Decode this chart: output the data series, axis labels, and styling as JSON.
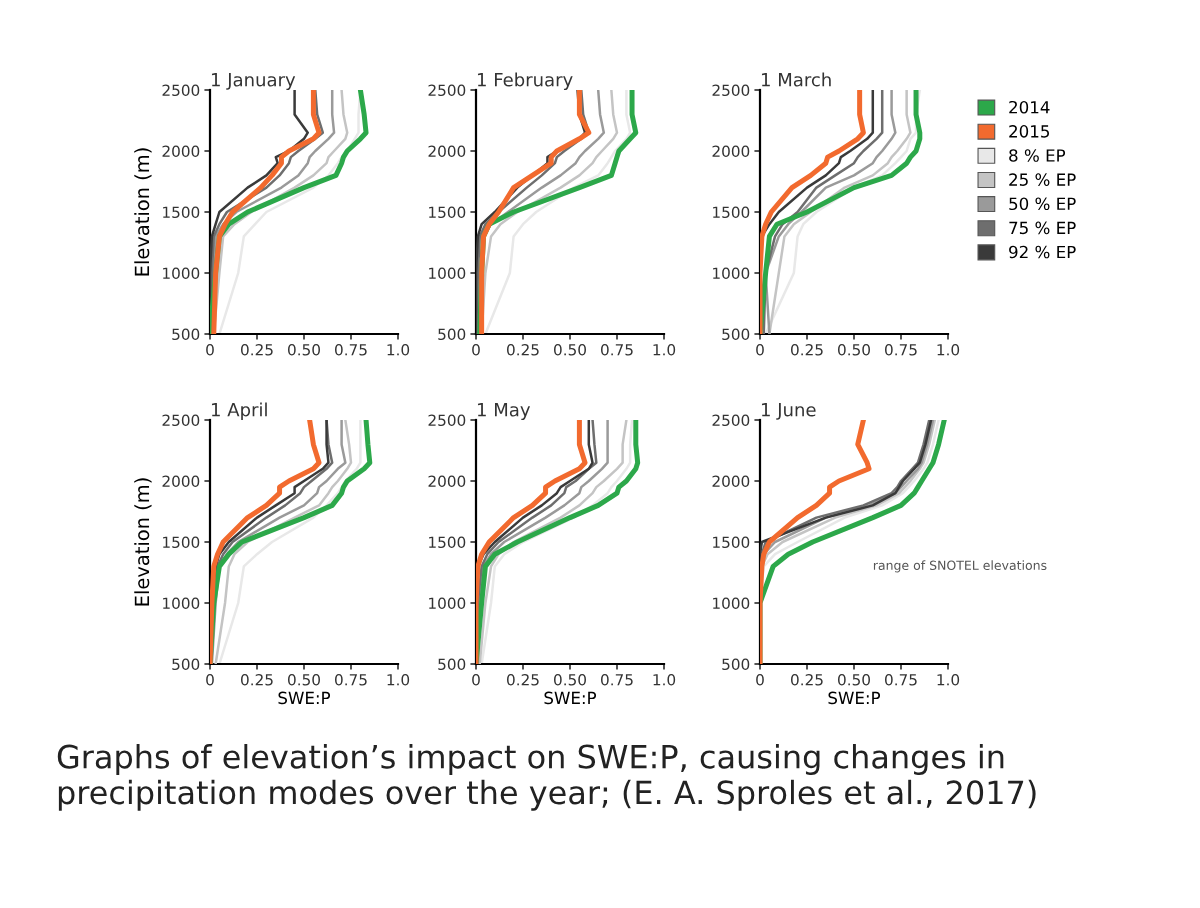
{
  "chart_data": [
    {
      "type": "line",
      "title": "1 January",
      "ylabel": "Elevation (m)",
      "xlim": [
        0,
        1
      ],
      "ylim": [
        500,
        2500
      ],
      "xticks": [
        0,
        {
          "value": 0.25,
          "label": "0.25"
        },
        {
          "value": 0.5,
          "label": "0.50"
        },
        {
          "value": 0.75,
          "label": "0.75"
        },
        {
          "value": 1,
          "label": "1.0"
        }
      ],
      "yticks": [
        500,
        1000,
        1500,
        2000,
        2500
      ],
      "grid": false,
      "legend": false,
      "annotations": [
        "Graphs of elevation’s impact on SWE:P, causing changes in precipitation modes over the year; (E. A. Sproles et al., 2017)"
      ],
      "series": [
        {
          "color": "#e8e8e8",
          "x": [
            0.05,
            0.15,
            0.18,
            0.24,
            0.3,
            0.55,
            0.63,
            0.68,
            0.7,
            0.73,
            0.77,
            0.79,
            0.79,
            0.8
          ],
          "values": [
            500,
            1000,
            1300,
            1400,
            1500,
            1700,
            1800,
            1900,
            1950,
            2000,
            2100,
            2150,
            2300,
            2500
          ]
        },
        {
          "color": "#c4c4c4",
          "x": [
            0.02,
            0.05,
            0.07,
            0.13,
            0.22,
            0.45,
            0.55,
            0.62,
            0.63,
            0.66,
            0.72,
            0.73,
            0.71,
            0.7
          ],
          "values": [
            500,
            1000,
            1300,
            1400,
            1500,
            1700,
            1800,
            1900,
            1950,
            2000,
            2100,
            2150,
            2300,
            2500
          ]
        },
        {
          "color": "#9a9a9a",
          "x": [
            0.01,
            0.02,
            0.03,
            0.07,
            0.14,
            0.38,
            0.47,
            0.52,
            0.53,
            0.56,
            0.63,
            0.66,
            0.65,
            0.65
          ],
          "values": [
            500,
            1000,
            1300,
            1400,
            1500,
            1700,
            1800,
            1900,
            1950,
            2000,
            2100,
            2150,
            2300,
            2500
          ]
        },
        {
          "color": "#6e6e6e",
          "x": [
            0,
            0.01,
            0.02,
            0.05,
            0.09,
            0.3,
            0.37,
            0.42,
            0.43,
            0.47,
            0.56,
            0.6,
            0.57,
            0.56
          ],
          "values": [
            500,
            1000,
            1300,
            1400,
            1500,
            1700,
            1800,
            1900,
            1950,
            2000,
            2100,
            2150,
            2300,
            2500
          ]
        },
        {
          "color": "#3a3a3a",
          "x": [
            0,
            0,
            0.01,
            0.03,
            0.05,
            0.2,
            0.3,
            0.36,
            0.35,
            0.42,
            0.5,
            0.52,
            0.45,
            0.45
          ],
          "values": [
            500,
            1000,
            1300,
            1400,
            1500,
            1700,
            1800,
            1900,
            1950,
            2000,
            2100,
            2150,
            2300,
            2500
          ]
        },
        {
          "color": "#2ca84a",
          "x": [
            0,
            0.03,
            0.05,
            0.1,
            0.2,
            0.5,
            0.67,
            0.7,
            0.71,
            0.73,
            0.8,
            0.83,
            0.82,
            0.8
          ],
          "values": [
            500,
            1000,
            1300,
            1400,
            1500,
            1700,
            1800,
            1900,
            1950,
            2000,
            2100,
            2150,
            2300,
            2500
          ]
        },
        {
          "color": "#f26a2e",
          "x": [
            0.02,
            0.03,
            0.05,
            0.08,
            0.12,
            0.27,
            0.33,
            0.38,
            0.38,
            0.42,
            0.55,
            0.58,
            0.55,
            0.55
          ],
          "values": [
            500,
            1000,
            1300,
            1400,
            1500,
            1700,
            1800,
            1900,
            1950,
            2000,
            2100,
            2150,
            2300,
            2500
          ]
        }
      ]
    },
    {
      "type": "line",
      "title": "1 February",
      "xlim": [
        0,
        1
      ],
      "ylim": [
        500,
        2500
      ],
      "xticks": [
        0,
        {
          "value": 0.25,
          "label": "0.25"
        },
        {
          "value": 0.5,
          "label": "0.50"
        },
        {
          "value": 0.75,
          "label": "0.75"
        },
        {
          "value": 1,
          "label": "1.0"
        }
      ],
      "yticks": [
        500,
        1000,
        1500,
        2000,
        2500
      ],
      "grid": false,
      "legend": false,
      "series": [
        {
          "color": "#e8e8e8",
          "x": [
            0.05,
            0.18,
            0.2,
            0.25,
            0.32,
            0.52,
            0.65,
            0.7,
            0.72,
            0.74,
            0.8,
            0.82,
            0.8,
            0.8
          ],
          "values": [
            500,
            1000,
            1300,
            1400,
            1500,
            1700,
            1800,
            1900,
            1950,
            2000,
            2100,
            2150,
            2300,
            2500
          ]
        },
        {
          "color": "#c4c4c4",
          "x": [
            0.03,
            0.05,
            0.08,
            0.13,
            0.22,
            0.45,
            0.55,
            0.62,
            0.64,
            0.67,
            0.73,
            0.75,
            0.73,
            0.72
          ],
          "values": [
            500,
            1000,
            1300,
            1400,
            1500,
            1700,
            1800,
            1900,
            1950,
            2000,
            2100,
            2150,
            2300,
            2500
          ]
        },
        {
          "color": "#9a9a9a",
          "x": [
            0.01,
            0.02,
            0.04,
            0.08,
            0.17,
            0.35,
            0.45,
            0.53,
            0.55,
            0.58,
            0.65,
            0.68,
            0.66,
            0.65
          ],
          "values": [
            500,
            1000,
            1300,
            1400,
            1500,
            1700,
            1800,
            1900,
            1950,
            2000,
            2100,
            2150,
            2300,
            2500
          ]
        },
        {
          "color": "#6e6e6e",
          "x": [
            0,
            0.01,
            0.02,
            0.05,
            0.12,
            0.27,
            0.35,
            0.42,
            0.43,
            0.47,
            0.56,
            0.6,
            0.57,
            0.56
          ],
          "values": [
            500,
            1000,
            1300,
            1400,
            1500,
            1700,
            1800,
            1900,
            1950,
            2000,
            2100,
            2150,
            2300,
            2500
          ]
        },
        {
          "color": "#3a3a3a",
          "x": [
            0,
            0,
            0.01,
            0.03,
            0.1,
            0.22,
            0.3,
            0.38,
            0.38,
            0.43,
            0.55,
            0.58,
            0.55,
            0.54
          ],
          "values": [
            500,
            1000,
            1300,
            1400,
            1500,
            1700,
            1800,
            1900,
            1950,
            2000,
            2100,
            2150,
            2300,
            2500
          ]
        },
        {
          "color": "#2ca84a",
          "x": [
            0.02,
            0.03,
            0.04,
            0.07,
            0.2,
            0.55,
            0.72,
            0.74,
            0.75,
            0.76,
            0.82,
            0.85,
            0.83,
            0.83
          ],
          "values": [
            500,
            1000,
            1300,
            1400,
            1500,
            1700,
            1800,
            1900,
            1950,
            2000,
            2100,
            2150,
            2300,
            2500
          ]
        },
        {
          "color": "#f26a2e",
          "x": [
            0.03,
            0.03,
            0.04,
            0.07,
            0.12,
            0.2,
            0.3,
            0.4,
            0.4,
            0.43,
            0.55,
            0.6,
            0.55,
            0.55
          ],
          "values": [
            500,
            1000,
            1300,
            1400,
            1500,
            1700,
            1800,
            1900,
            1950,
            2000,
            2100,
            2150,
            2300,
            2500
          ]
        }
      ]
    },
    {
      "type": "line",
      "title": "1 March",
      "xlim": [
        0,
        1
      ],
      "ylim": [
        500,
        2500
      ],
      "xticks": [
        0,
        {
          "value": 0.25,
          "label": "0.25"
        },
        {
          "value": 0.5,
          "label": "0.50"
        },
        {
          "value": 0.75,
          "label": "0.75"
        },
        {
          "value": 1,
          "label": "1.0"
        }
      ],
      "yticks": [
        500,
        1000,
        1500,
        2000,
        2500
      ],
      "grid": false,
      "legend": "right",
      "series": [
        {
          "name": "8 % EP",
          "color": "#e8e8e8",
          "x": [
            0.03,
            0.18,
            0.2,
            0.23,
            0.3,
            0.5,
            0.65,
            0.72,
            0.75,
            0.78,
            0.8,
            0.83,
            0.83,
            0.85
          ],
          "values": [
            500,
            1000,
            1300,
            1400,
            1500,
            1700,
            1800,
            1900,
            1950,
            2000,
            2100,
            2150,
            2300,
            2500
          ]
        },
        {
          "name": "25 % EP",
          "color": "#c4c4c4",
          "x": [
            0.05,
            0.1,
            0.13,
            0.18,
            0.27,
            0.45,
            0.6,
            0.68,
            0.7,
            0.73,
            0.78,
            0.8,
            0.78,
            0.78
          ],
          "values": [
            500,
            1000,
            1300,
            1400,
            1500,
            1700,
            1800,
            1900,
            1950,
            2000,
            2100,
            2150,
            2300,
            2500
          ]
        },
        {
          "name": "50 % EP",
          "color": "#9a9a9a",
          "x": [
            0.05,
            0.03,
            0.1,
            0.15,
            0.22,
            0.35,
            0.5,
            0.6,
            0.62,
            0.65,
            0.7,
            0.72,
            0.7,
            0.7
          ],
          "values": [
            500,
            1000,
            1300,
            1400,
            1500,
            1700,
            1800,
            1900,
            1950,
            2000,
            2100,
            2150,
            2300,
            2500
          ]
        },
        {
          "name": "75 % EP",
          "color": "#6e6e6e",
          "x": [
            0.02,
            0.03,
            0.08,
            0.12,
            0.2,
            0.3,
            0.4,
            0.5,
            0.52,
            0.55,
            0.62,
            0.65,
            0.65,
            0.65
          ],
          "values": [
            500,
            1000,
            1300,
            1400,
            1500,
            1700,
            1800,
            1900,
            1950,
            2000,
            2100,
            2150,
            2300,
            2500
          ]
        },
        {
          "name": "92 % EP",
          "color": "#3a3a3a",
          "x": [
            0,
            0,
            0.01,
            0.05,
            0.1,
            0.25,
            0.35,
            0.42,
            0.43,
            0.48,
            0.57,
            0.6,
            0.6,
            0.6
          ],
          "values": [
            500,
            1000,
            1300,
            1400,
            1500,
            1700,
            1800,
            1900,
            1950,
            2000,
            2100,
            2150,
            2300,
            2500
          ]
        },
        {
          "name": "2014",
          "color": "#2ca84a",
          "x": [
            0,
            0.03,
            0.05,
            0.09,
            0.25,
            0.5,
            0.7,
            0.78,
            0.8,
            0.83,
            0.85,
            0.85,
            0.83,
            0.83
          ],
          "values": [
            500,
            1000,
            1300,
            1400,
            1500,
            1700,
            1800,
            1900,
            1950,
            2000,
            2100,
            2150,
            2300,
            2500
          ]
        },
        {
          "name": "2015",
          "color": "#f26a2e",
          "x": [
            0,
            0,
            0.01,
            0.03,
            0.06,
            0.17,
            0.27,
            0.35,
            0.36,
            0.42,
            0.52,
            0.55,
            0.53,
            0.53
          ],
          "values": [
            500,
            1000,
            1300,
            1400,
            1500,
            1700,
            1800,
            1900,
            1950,
            2000,
            2100,
            2150,
            2300,
            2500
          ]
        }
      ]
    },
    {
      "type": "line",
      "title": "1 April",
      "ylabel": "Elevation (m)",
      "xlabel": "SWE:P",
      "xlim": [
        0,
        1
      ],
      "ylim": [
        500,
        2500
      ],
      "xticks": [
        0,
        {
          "value": 0.25,
          "label": "0.25"
        },
        {
          "value": 0.5,
          "label": "0.50"
        },
        {
          "value": 0.75,
          "label": "0.75"
        },
        {
          "value": 1,
          "label": "1.0"
        }
      ],
      "yticks": [
        500,
        1000,
        1500,
        2000,
        2500
      ],
      "grid": false,
      "legend": false,
      "series": [
        {
          "color": "#e8e8e8",
          "x": [
            0.05,
            0.15,
            0.18,
            0.25,
            0.33,
            0.55,
            0.62,
            0.68,
            0.7,
            0.72,
            0.78,
            0.8,
            0.8,
            0.8
          ],
          "values": [
            500,
            1000,
            1300,
            1400,
            1500,
            1700,
            1800,
            1900,
            1950,
            2000,
            2100,
            2150,
            2300,
            2500
          ]
        },
        {
          "color": "#c4c4c4",
          "x": [
            0.03,
            0.08,
            0.1,
            0.13,
            0.2,
            0.45,
            0.58,
            0.63,
            0.65,
            0.68,
            0.73,
            0.75,
            0.74,
            0.72
          ],
          "values": [
            500,
            1000,
            1300,
            1400,
            1500,
            1700,
            1800,
            1900,
            1950,
            2000,
            2100,
            2150,
            2300,
            2500
          ]
        },
        {
          "color": "#9a9a9a",
          "x": [
            0.01,
            0.03,
            0.05,
            0.09,
            0.15,
            0.37,
            0.5,
            0.57,
            0.58,
            0.62,
            0.68,
            0.72,
            0.7,
            0.7
          ],
          "values": [
            500,
            1000,
            1300,
            1400,
            1500,
            1700,
            1800,
            1900,
            1950,
            2000,
            2100,
            2150,
            2300,
            2500
          ]
        },
        {
          "color": "#6e6e6e",
          "x": [
            0,
            0.02,
            0.04,
            0.07,
            0.12,
            0.3,
            0.4,
            0.48,
            0.5,
            0.54,
            0.62,
            0.65,
            0.63,
            0.62
          ],
          "values": [
            500,
            1000,
            1300,
            1400,
            1500,
            1700,
            1800,
            1900,
            1950,
            2000,
            2100,
            2150,
            2300,
            2500
          ]
        },
        {
          "color": "#3a3a3a",
          "x": [
            0,
            0.01,
            0.03,
            0.05,
            0.1,
            0.25,
            0.35,
            0.45,
            0.45,
            0.5,
            0.6,
            0.63,
            0.62,
            0.62
          ],
          "values": [
            500,
            1000,
            1300,
            1400,
            1500,
            1700,
            1800,
            1900,
            1950,
            2000,
            2100,
            2150,
            2300,
            2500
          ]
        },
        {
          "color": "#2ca84a",
          "x": [
            0,
            0.02,
            0.05,
            0.1,
            0.17,
            0.5,
            0.65,
            0.7,
            0.71,
            0.73,
            0.82,
            0.85,
            0.84,
            0.83
          ],
          "values": [
            500,
            1000,
            1300,
            1400,
            1500,
            1700,
            1800,
            1900,
            1950,
            2000,
            2100,
            2150,
            2300,
            2500
          ]
        },
        {
          "color": "#f26a2e",
          "x": [
            0,
            0.01,
            0.02,
            0.04,
            0.07,
            0.2,
            0.3,
            0.37,
            0.37,
            0.42,
            0.55,
            0.58,
            0.55,
            0.53
          ],
          "values": [
            500,
            1000,
            1300,
            1400,
            1500,
            1700,
            1800,
            1900,
            1950,
            2000,
            2100,
            2150,
            2300,
            2500
          ]
        }
      ]
    },
    {
      "type": "line",
      "title": "1 May",
      "xlabel": "SWE:P",
      "xlim": [
        0,
        1
      ],
      "ylim": [
        500,
        2500
      ],
      "xticks": [
        0,
        {
          "value": 0.25,
          "label": "0.25"
        },
        {
          "value": 0.5,
          "label": "0.50"
        },
        {
          "value": 0.75,
          "label": "0.75"
        },
        {
          "value": 1,
          "label": "1.0"
        }
      ],
      "yticks": [
        500,
        1000,
        1500,
        2000,
        2500
      ],
      "grid": false,
      "legend": false,
      "series": [
        {
          "color": "#e8e8e8",
          "x": [
            0.03,
            0.08,
            0.1,
            0.15,
            0.25,
            0.52,
            0.62,
            0.7,
            0.72,
            0.75,
            0.8,
            0.82,
            0.82,
            0.83
          ],
          "values": [
            500,
            1000,
            1300,
            1400,
            1500,
            1700,
            1800,
            1900,
            1950,
            2000,
            2100,
            2150,
            2300,
            2500
          ]
        },
        {
          "color": "#c4c4c4",
          "x": [
            0.02,
            0.05,
            0.08,
            0.12,
            0.2,
            0.45,
            0.55,
            0.62,
            0.64,
            0.68,
            0.75,
            0.78,
            0.78,
            0.8
          ],
          "values": [
            500,
            1000,
            1300,
            1400,
            1500,
            1700,
            1800,
            1900,
            1950,
            2000,
            2100,
            2150,
            2300,
            2500
          ]
        },
        {
          "color": "#9a9a9a",
          "x": [
            0.01,
            0.02,
            0.04,
            0.08,
            0.15,
            0.37,
            0.47,
            0.55,
            0.56,
            0.6,
            0.67,
            0.7,
            0.7,
            0.7
          ],
          "values": [
            500,
            1000,
            1300,
            1400,
            1500,
            1700,
            1800,
            1900,
            1950,
            2000,
            2100,
            2150,
            2300,
            2500
          ]
        },
        {
          "color": "#6e6e6e",
          "x": [
            0,
            0.01,
            0.03,
            0.06,
            0.12,
            0.3,
            0.4,
            0.47,
            0.48,
            0.53,
            0.6,
            0.64,
            0.63,
            0.62
          ],
          "values": [
            500,
            1000,
            1300,
            1400,
            1500,
            1700,
            1800,
            1900,
            1950,
            2000,
            2100,
            2150,
            2300,
            2500
          ]
        },
        {
          "color": "#3a3a3a",
          "x": [
            0,
            0,
            0.01,
            0.04,
            0.1,
            0.25,
            0.35,
            0.43,
            0.45,
            0.5,
            0.6,
            0.62,
            0.6,
            0.6
          ],
          "values": [
            500,
            1000,
            1300,
            1400,
            1500,
            1700,
            1800,
            1900,
            1950,
            2000,
            2100,
            2150,
            2300,
            2500
          ]
        },
        {
          "color": "#2ca84a",
          "x": [
            0,
            0.03,
            0.05,
            0.1,
            0.22,
            0.5,
            0.65,
            0.75,
            0.76,
            0.8,
            0.85,
            0.86,
            0.85,
            0.85
          ],
          "values": [
            500,
            1000,
            1300,
            1400,
            1500,
            1700,
            1800,
            1900,
            1950,
            2000,
            2100,
            2150,
            2300,
            2500
          ]
        },
        {
          "color": "#f26a2e",
          "x": [
            0,
            0,
            0.01,
            0.03,
            0.07,
            0.2,
            0.3,
            0.37,
            0.37,
            0.42,
            0.55,
            0.58,
            0.55,
            0.55
          ],
          "values": [
            500,
            1000,
            1300,
            1400,
            1500,
            1700,
            1800,
            1900,
            1950,
            2000,
            2100,
            2150,
            2300,
            2500
          ]
        }
      ]
    },
    {
      "type": "line",
      "title": "1 June",
      "xlabel": "SWE:P",
      "xlim": [
        0,
        1
      ],
      "ylim": [
        500,
        2500
      ],
      "xticks": [
        0,
        {
          "value": 0.25,
          "label": "0.25"
        },
        {
          "value": 0.5,
          "label": "0.50"
        },
        {
          "value": 0.75,
          "label": "0.75"
        },
        {
          "value": 1,
          "label": "1.0"
        }
      ],
      "yticks": [
        500,
        1000,
        1500,
        2000,
        2500
      ],
      "grid": false,
      "legend": false,
      "annotations": [
        "range of SNOTEL elevations"
      ],
      "series": [
        {
          "color": "#e8e8e8",
          "x": [
            0,
            0,
            0.02,
            0.08,
            0.2,
            0.45,
            0.65,
            0.76,
            0.79,
            0.82,
            0.87,
            0.89,
            0.92,
            0.95
          ],
          "values": [
            500,
            1000,
            1300,
            1400,
            1500,
            1700,
            1800,
            1900,
            1950,
            2000,
            2100,
            2150,
            2300,
            2500
          ]
        },
        {
          "color": "#c4c4c4",
          "x": [
            0,
            0,
            0.01,
            0.04,
            0.12,
            0.4,
            0.62,
            0.74,
            0.77,
            0.8,
            0.85,
            0.87,
            0.9,
            0.93
          ],
          "values": [
            500,
            1000,
            1300,
            1400,
            1500,
            1700,
            1800,
            1900,
            1950,
            2000,
            2100,
            2150,
            2300,
            2500
          ]
        },
        {
          "color": "#9a9a9a",
          "x": [
            0,
            0,
            0,
            0.02,
            0.08,
            0.35,
            0.58,
            0.72,
            0.75,
            0.78,
            0.84,
            0.86,
            0.89,
            0.92
          ],
          "values": [
            500,
            1000,
            1300,
            1400,
            1500,
            1700,
            1800,
            1900,
            1950,
            2000,
            2100,
            2150,
            2300,
            2500
          ]
        },
        {
          "color": "#6e6e6e",
          "x": [
            0,
            0,
            0,
            0.01,
            0.03,
            0.3,
            0.55,
            0.7,
            0.73,
            0.75,
            0.81,
            0.84,
            0.87,
            0.9
          ],
          "values": [
            500,
            1000,
            1300,
            1400,
            1500,
            1700,
            1800,
            1900,
            1950,
            2000,
            2100,
            2150,
            2300,
            2500
          ]
        },
        {
          "color": "#3a3a3a",
          "x": [
            0,
            0,
            0,
            0,
            0.01,
            0.35,
            0.6,
            0.72,
            0.74,
            0.76,
            0.82,
            0.85,
            0.88,
            0.91
          ],
          "values": [
            500,
            1000,
            1300,
            1400,
            1500,
            1700,
            1800,
            1900,
            1950,
            2000,
            2100,
            2150,
            2300,
            2500
          ]
        },
        {
          "color": "#2ca84a",
          "x": [
            0,
            0,
            0.07,
            0.15,
            0.28,
            0.6,
            0.75,
            0.82,
            0.84,
            0.86,
            0.9,
            0.92,
            0.95,
            0.98
          ],
          "values": [
            500,
            1000,
            1300,
            1400,
            1500,
            1700,
            1800,
            1900,
            1950,
            2000,
            2100,
            2150,
            2300,
            2500
          ]
        },
        {
          "color": "#f26a2e",
          "x": [
            0,
            0,
            0.01,
            0.02,
            0.05,
            0.2,
            0.3,
            0.37,
            0.37,
            0.42,
            0.58,
            0.57,
            0.52,
            0.55
          ],
          "values": [
            500,
            1000,
            1300,
            1400,
            1500,
            1700,
            1800,
            1900,
            1950,
            2000,
            2100,
            2150,
            2300,
            2500
          ]
        }
      ]
    }
  ]
}
